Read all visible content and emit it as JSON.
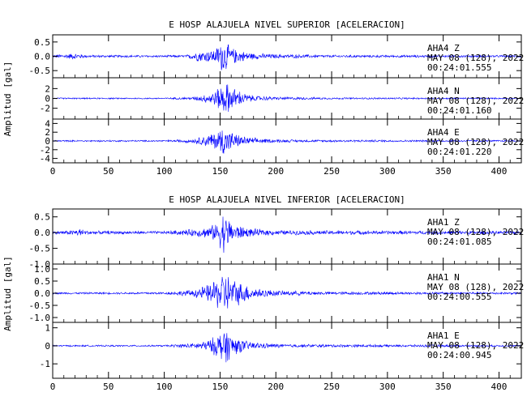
{
  "chart_data": [
    {
      "type": "line",
      "title": "E HOSP ALAJUELA NIVEL SUPERIOR [ACELERACION]",
      "ylabel": "Amplitud [gal]",
      "xlim": [
        0,
        420
      ],
      "xticks": [
        0,
        50,
        100,
        150,
        200,
        250,
        300,
        350,
        400
      ],
      "line_color": "#0000ff",
      "traces": [
        {
          "component": "Z",
          "station": "AHA4",
          "ylim": [
            -0.75,
            0.75
          ],
          "yticks": [
            -0.5,
            0.0,
            0.5
          ],
          "yticklabels": [
            "-0.5",
            "0.0",
            "0.5"
          ],
          "annotation": [
            "AHA4 Z",
            "MAY 08 (128), 2022",
            "00:24:01.555"
          ],
          "envelope": [
            [
              0,
              0.06
            ],
            [
              10,
              0.08
            ],
            [
              20,
              0.12
            ],
            [
              30,
              0.05
            ],
            [
              100,
              0.04
            ],
            [
              120,
              0.05
            ],
            [
              128,
              0.18
            ],
            [
              135,
              0.22
            ],
            [
              145,
              0.25
            ],
            [
              150,
              0.5
            ],
            [
              153,
              0.7
            ],
            [
              157,
              0.45
            ],
            [
              162,
              0.3
            ],
            [
              170,
              0.2
            ],
            [
              180,
              0.12
            ],
            [
              200,
              0.08
            ],
            [
              250,
              0.05
            ],
            [
              420,
              0.04
            ]
          ]
        },
        {
          "component": "N",
          "station": "AHA4",
          "ylim": [
            -4.2,
            4.2
          ],
          "yticks": [
            -2,
            0,
            2
          ],
          "yticklabels": [
            "-2",
            "0",
            "2"
          ],
          "annotation": [
            "AHA4 N",
            "MAY 08 (128), 2022",
            "00:24:01.160"
          ],
          "envelope": [
            [
              0,
              0.15
            ],
            [
              100,
              0.15
            ],
            [
              125,
              0.3
            ],
            [
              135,
              0.8
            ],
            [
              145,
              1.6
            ],
            [
              150,
              2.8
            ],
            [
              155,
              3.6
            ],
            [
              160,
              2.8
            ],
            [
              165,
              2.0
            ],
            [
              172,
              1.2
            ],
            [
              180,
              0.6
            ],
            [
              200,
              0.35
            ],
            [
              250,
              0.2
            ],
            [
              420,
              0.15
            ]
          ]
        },
        {
          "component": "E",
          "station": "AHA4",
          "ylim": [
            -5.0,
            5.0
          ],
          "yticks": [
            -4,
            -2,
            0,
            2,
            4
          ],
          "yticklabels": [
            "-4",
            "-2",
            "0",
            "2",
            "4"
          ],
          "annotation": [
            "AHA4 E",
            "MAY 08 (128), 2022",
            "00:24:01.220"
          ],
          "envelope": [
            [
              0,
              0.2
            ],
            [
              100,
              0.2
            ],
            [
              125,
              0.5
            ],
            [
              135,
              1.2
            ],
            [
              148,
              2.5
            ],
            [
              153,
              4.0
            ],
            [
              158,
              2.6
            ],
            [
              165,
              1.6
            ],
            [
              175,
              0.9
            ],
            [
              190,
              0.5
            ],
            [
              220,
              0.3
            ],
            [
              420,
              0.2
            ]
          ]
        }
      ]
    },
    {
      "type": "line",
      "title": "E HOSP ALAJUELA NIVEL INFERIOR [ACELERACION]",
      "ylabel": "Amplitud [gal]",
      "xlim": [
        0,
        420
      ],
      "xticks": [
        0,
        50,
        100,
        150,
        200,
        250,
        300,
        350,
        400
      ],
      "line_color": "#0000ff",
      "traces": [
        {
          "component": "Z",
          "station": "AHA1",
          "ylim": [
            -1.0,
            0.75
          ],
          "yticks": [
            -1.0,
            -0.5,
            0.0,
            0.5
          ],
          "yticklabels": [
            "-1.0",
            "-0.5",
            "0.0",
            "0.5"
          ],
          "annotation": [
            "AHA1 Z",
            "MAY 08 (128), 2022",
            "00:24:01.085"
          ],
          "envelope": [
            [
              0,
              0.05
            ],
            [
              15,
              0.08
            ],
            [
              25,
              0.14
            ],
            [
              32,
              0.06
            ],
            [
              100,
              0.05
            ],
            [
              125,
              0.12
            ],
            [
              140,
              0.2
            ],
            [
              148,
              0.35
            ],
            [
              153,
              0.75
            ],
            [
              157,
              0.5
            ],
            [
              163,
              0.3
            ],
            [
              175,
              0.15
            ],
            [
              200,
              0.08
            ],
            [
              420,
              0.05
            ]
          ]
        },
        {
          "component": "N",
          "station": "AHA1",
          "ylim": [
            -1.2,
            1.2
          ],
          "yticks": [
            -1.0,
            -0.5,
            0.0,
            0.5,
            1.0
          ],
          "yticklabels": [
            "-1.0",
            "-0.5",
            "0.0",
            "0.5",
            "1.0"
          ],
          "annotation": [
            "AHA1 N",
            "MAY 08 (128), 2022",
            "00:24:00.555"
          ],
          "envelope": [
            [
              0,
              0.04
            ],
            [
              100,
              0.05
            ],
            [
              125,
              0.15
            ],
            [
              140,
              0.4
            ],
            [
              150,
              0.8
            ],
            [
              155,
              1.0
            ],
            [
              160,
              0.7
            ],
            [
              168,
              0.5
            ],
            [
              180,
              0.25
            ],
            [
              200,
              0.12
            ],
            [
              250,
              0.07
            ],
            [
              420,
              0.05
            ]
          ]
        },
        {
          "component": "E",
          "station": "AHA1",
          "ylim": [
            -1.8,
            1.3
          ],
          "yticks": [
            -1,
            0,
            1
          ],
          "yticklabels": [
            "-1",
            "0",
            "1"
          ],
          "annotation": [
            "AHA1 E",
            "MAY 08 (128), 2022",
            "00:24:00.945"
          ],
          "envelope": [
            [
              0,
              0.05
            ],
            [
              100,
              0.05
            ],
            [
              125,
              0.15
            ],
            [
              140,
              0.35
            ],
            [
              150,
              0.8
            ],
            [
              154,
              1.2
            ],
            [
              160,
              0.7
            ],
            [
              170,
              0.35
            ],
            [
              185,
              0.18
            ],
            [
              210,
              0.1
            ],
            [
              420,
              0.05
            ]
          ]
        }
      ]
    }
  ]
}
